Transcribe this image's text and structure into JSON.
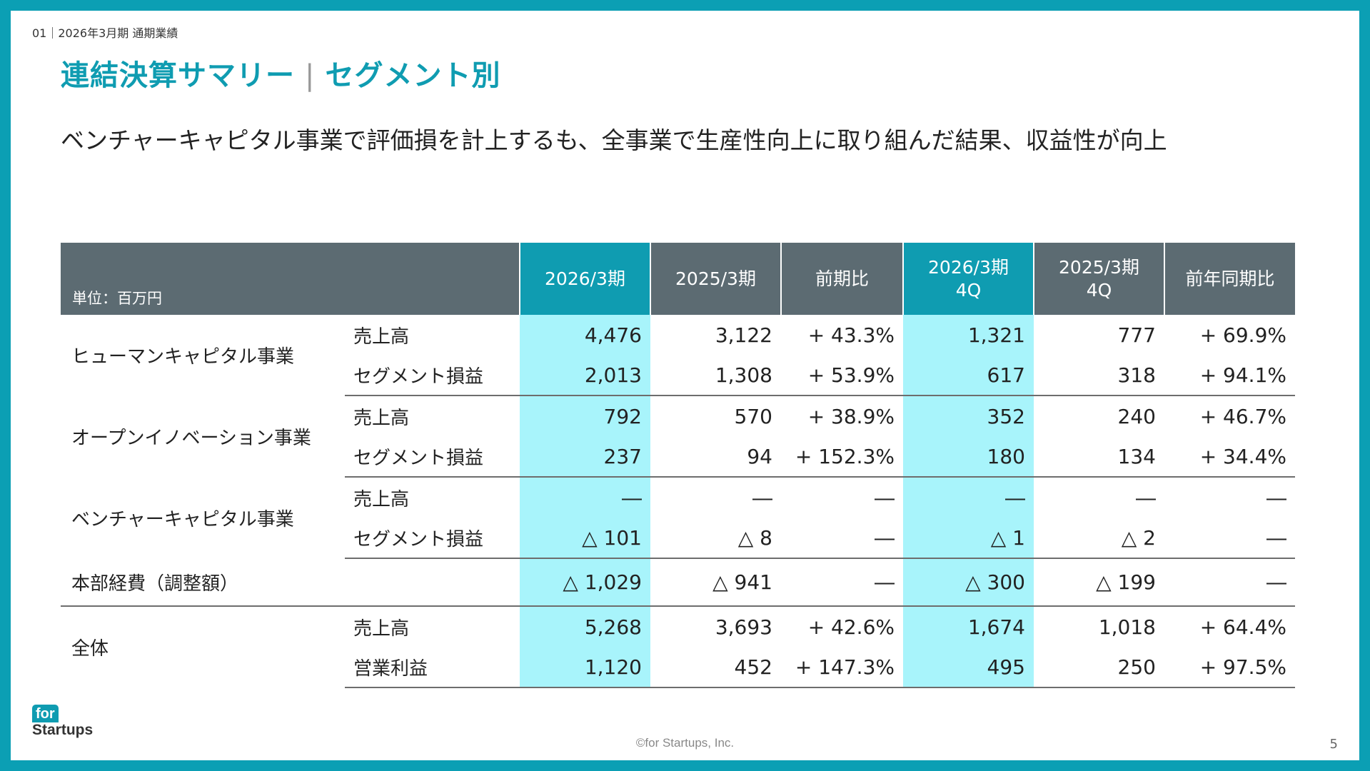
{
  "breadcrumb": "01｜2026年3月期 通期業績",
  "title": {
    "main": "連結決算サマリー",
    "separator": "|",
    "sub": "セグメント別"
  },
  "subtitle": "ベンチャーキャピタル事業で評価損を計上するも、全事業で生産性向上に取り組んだ結果、収益性が向上",
  "table": {
    "unit_label": "単位：百万円",
    "headers": {
      "h1": "2026/3期",
      "h2": "2025/3期",
      "h3": "前期比",
      "h4_line1": "2026/3期",
      "h4_line2": "4Q",
      "h5_line1": "2025/3期",
      "h5_line2": "4Q",
      "h6": "前年同期比"
    },
    "segments": {
      "human_capital": {
        "name": "ヒューマンキャピタル事業",
        "rows": [
          {
            "metric": "売上高",
            "v1": "4,476",
            "v2": "3,122",
            "v3": "+ 43.3%",
            "v4": "1,321",
            "v5": "777",
            "v6": "+ 69.9%"
          },
          {
            "metric": "セグメント損益",
            "v1": "2,013",
            "v2": "1,308",
            "v3": "+ 53.9%",
            "v4": "617",
            "v5": "318",
            "v6": "+ 94.1%"
          }
        ]
      },
      "open_innovation": {
        "name": "オープンイノベーション事業",
        "rows": [
          {
            "metric": "売上高",
            "v1": "792",
            "v2": "570",
            "v3": "+ 38.9%",
            "v4": "352",
            "v5": "240",
            "v6": "+ 46.7%"
          },
          {
            "metric": "セグメント損益",
            "v1": "237",
            "v2": "94",
            "v3": "+ 152.3%",
            "v4": "180",
            "v5": "134",
            "v6": "+ 34.4%"
          }
        ]
      },
      "venture_capital": {
        "name": "ベンチャーキャピタル事業",
        "rows": [
          {
            "metric": "売上高",
            "v1": "―",
            "v2": "―",
            "v3": "―",
            "v4": "―",
            "v5": "―",
            "v6": "―"
          },
          {
            "metric": "セグメント損益",
            "v1": "△ 101",
            "v2": "△ 8",
            "v3": "―",
            "v4": "△ 1",
            "v5": "△ 2",
            "v6": "―"
          }
        ]
      },
      "hq_expenses": {
        "name": "本部経費（調整額）",
        "row": {
          "v1": "△ 1,029",
          "v2": "△ 941",
          "v3": "―",
          "v4": "△ 300",
          "v5": "△ 199",
          "v6": "―"
        }
      },
      "total": {
        "name": "全体",
        "rows": [
          {
            "metric": "売上高",
            "v1": "5,268",
            "v2": "3,693",
            "v3": "+ 42.6%",
            "v4": "1,674",
            "v5": "1,018",
            "v6": "+ 64.4%"
          },
          {
            "metric": "営業利益",
            "v1": "1,120",
            "v2": "452",
            "v3": "+ 147.3%",
            "v4": "495",
            "v5": "250",
            "v6": "+ 97.5%"
          }
        ]
      }
    }
  },
  "footer": {
    "logo_line1": "for",
    "logo_line2": "Startups",
    "copyright": "©for Startups, Inc.",
    "page_number": "5"
  },
  "colors": {
    "frame": "#0b9fb4",
    "accent": "#0f9cb1",
    "header_gray": "#5c6b72",
    "highlight_cell": "#a8f4fb"
  }
}
